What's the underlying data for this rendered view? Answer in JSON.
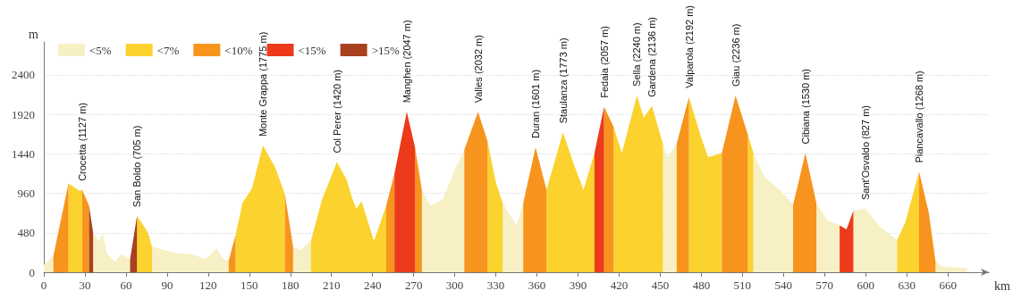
{
  "chart_data": {
    "type": "area",
    "xlabel": "km",
    "ylabel": "m",
    "x": [
      0,
      7,
      18,
      26,
      28,
      33,
      36,
      40,
      43,
      46,
      52,
      57,
      63,
      68,
      72,
      76,
      79,
      97,
      108,
      118,
      126,
      131,
      135,
      140,
      145,
      152,
      160,
      169,
      176,
      182,
      187,
      195,
      203,
      214,
      221,
      225,
      228,
      232,
      241,
      244,
      250,
      256,
      265,
      271,
      276,
      282,
      291,
      300,
      307,
      317,
      324,
      330,
      335,
      345,
      350,
      359,
      367,
      379,
      387,
      394,
      402,
      409,
      416,
      422,
      433,
      438,
      444,
      452,
      455,
      462,
      471,
      480,
      485,
      495,
      505,
      514,
      518,
      526,
      538,
      547,
      556,
      564,
      572,
      581,
      586,
      591,
      600,
      610,
      623,
      629,
      639,
      646,
      651,
      656,
      674
    ],
    "series": [
      {
        "name": "<5%",
        "color": "#f6f0c4",
        "values": [
          90,
          200,
          null,
          null,
          null,
          null,
          480,
          380,
          470,
          230,
          130,
          220,
          160,
          null,
          null,
          null,
          310,
          230,
          220,
          160,
          290,
          160,
          140,
          null,
          null,
          null,
          null,
          null,
          null,
          310,
          270,
          380,
          null,
          null,
          null,
          null,
          null,
          null,
          null,
          null,
          null,
          null,
          null,
          null,
          1000,
          810,
          880,
          1240,
          1490,
          null,
          null,
          null,
          840,
          570,
          840,
          null,
          null,
          null,
          null,
          null,
          null,
          null,
          null,
          null,
          null,
          null,
          null,
          1560,
          1400,
          1560,
          null,
          null,
          null,
          null,
          null,
          null,
          1450,
          1160,
          990,
          820,
          null,
          840,
          630,
          570,
          null,
          750,
          770,
          560,
          390,
          null,
          null,
          null,
          130,
          70,
          50
        ]
      },
      {
        "name": "<7%",
        "color": "#fbd22e",
        "values": [
          null,
          null,
          1080,
          990,
          1000,
          null,
          null,
          null,
          null,
          null,
          null,
          null,
          null,
          680,
          590,
          480,
          310,
          null,
          null,
          null,
          null,
          null,
          null,
          450,
          840,
          1020,
          1540,
          1270,
          950,
          null,
          null,
          380,
          880,
          1340,
          1130,
          910,
          770,
          860,
          380,
          520,
          810,
          null,
          null,
          null,
          null,
          null,
          null,
          null,
          null,
          null,
          1590,
          1090,
          840,
          null,
          null,
          null,
          1000,
          1700,
          1310,
          1000,
          1450,
          null,
          1770,
          1450,
          2150,
          1880,
          2020,
          1560,
          null,
          null,
          2130,
          1630,
          1400,
          1450,
          null,
          1670,
          1450,
          null,
          null,
          null,
          null,
          null,
          null,
          null,
          null,
          null,
          null,
          null,
          390,
          610,
          1220,
          null,
          null,
          null,
          null
        ]
      },
      {
        "name": "<10%",
        "color": "#f7941d",
        "values": [
          null,
          200,
          1080,
          null,
          1000,
          810,
          null,
          null,
          null,
          null,
          null,
          null,
          null,
          null,
          null,
          null,
          null,
          null,
          null,
          null,
          null,
          null,
          140,
          450,
          null,
          null,
          null,
          null,
          950,
          310,
          null,
          null,
          null,
          null,
          null,
          null,
          null,
          null,
          null,
          null,
          810,
          1200,
          null,
          1520,
          1000,
          null,
          null,
          null,
          1490,
          1950,
          1590,
          null,
          null,
          null,
          840,
          1520,
          1000,
          null,
          null,
          null,
          null,
          2010,
          1770,
          null,
          null,
          null,
          null,
          null,
          null,
          1560,
          2130,
          null,
          null,
          1450,
          2150,
          1670,
          null,
          null,
          null,
          820,
          1450,
          840,
          null,
          null,
          null,
          null,
          null,
          null,
          null,
          null,
          1220,
          730,
          130,
          null,
          null
        ]
      },
      {
        "name": "<15%",
        "color": "#ec3a1a",
        "values": [
          null,
          null,
          null,
          null,
          null,
          null,
          null,
          null,
          null,
          null,
          null,
          null,
          null,
          null,
          null,
          null,
          null,
          null,
          null,
          null,
          null,
          null,
          null,
          null,
          null,
          null,
          null,
          null,
          null,
          null,
          null,
          null,
          null,
          null,
          null,
          null,
          null,
          null,
          null,
          null,
          null,
          1200,
          1950,
          1520,
          null,
          null,
          null,
          null,
          null,
          null,
          null,
          null,
          null,
          null,
          null,
          null,
          null,
          null,
          null,
          null,
          1450,
          2010,
          null,
          null,
          null,
          null,
          null,
          null,
          null,
          null,
          null,
          null,
          null,
          null,
          null,
          null,
          null,
          null,
          null,
          null,
          null,
          null,
          null,
          570,
          520,
          750,
          null,
          null,
          null,
          null,
          null,
          null,
          null,
          null,
          null
        ]
      },
      {
        "name": ">15%",
        "color": "#a9411f",
        "values": [
          null,
          null,
          null,
          null,
          null,
          810,
          480,
          null,
          null,
          null,
          null,
          null,
          160,
          680,
          null,
          null,
          null,
          null,
          null,
          null,
          null,
          null,
          null,
          null,
          null,
          null,
          null,
          null,
          null,
          null,
          null,
          null,
          null,
          null,
          null,
          null,
          null,
          null,
          null,
          null,
          null,
          null,
          null,
          null,
          null,
          null,
          null,
          null,
          null,
          null,
          null,
          null,
          null,
          null,
          null,
          null,
          null,
          null,
          null,
          null,
          null,
          null,
          null,
          null,
          null,
          null,
          null,
          null,
          null,
          null,
          null,
          null,
          null,
          null,
          null,
          null,
          null,
          null,
          null,
          null,
          null,
          null,
          null,
          null,
          null,
          null,
          null,
          null,
          null,
          null,
          null,
          null,
          null,
          null,
          null
        ]
      }
    ],
    "xlim": [
      0,
      690
    ],
    "xticks": [
      0,
      30,
      60,
      90,
      120,
      150,
      180,
      210,
      240,
      270,
      300,
      330,
      360,
      390,
      420,
      450,
      480,
      510,
      540,
      570,
      600,
      630,
      660
    ],
    "ylim": [
      0,
      2800
    ],
    "yticks": [
      0,
      480,
      960,
      1440,
      1920,
      2400
    ],
    "grid": "y",
    "legend": "top left",
    "annotations": [
      {
        "text": "Crocetta (1127 m)",
        "x": 28,
        "y": 1000
      },
      {
        "text": "San Boldo (705 m)",
        "x": 68,
        "y": 680
      },
      {
        "text": "Monte Grappa (1775 m)",
        "x": 160,
        "y": 1540
      },
      {
        "text": "Col Perer (1420 m)",
        "x": 214,
        "y": 1340
      },
      {
        "text": "Manghen (2047 m)",
        "x": 265,
        "y": 1950
      },
      {
        "text": "Valles (2032 m)",
        "x": 317,
        "y": 1950
      },
      {
        "text": "Duran (1601 m)",
        "x": 359,
        "y": 1520
      },
      {
        "text": "Staulanza (1773 m)",
        "x": 379,
        "y": 1700
      },
      {
        "text": "Fedaia (2057 m)",
        "x": 409,
        "y": 2010
      },
      {
        "text": "Sella (2240 m)",
        "x": 433,
        "y": 2150
      },
      {
        "text": "Gardena (2136 m)",
        "x": 444,
        "y": 2020
      },
      {
        "text": "Valparola (2192 m)",
        "x": 471,
        "y": 2130
      },
      {
        "text": "Giau (2236 m)",
        "x": 505,
        "y": 2150
      },
      {
        "text": "Cibiana (1530 m)",
        "x": 556,
        "y": 1450
      },
      {
        "text": "Sant'Osvaldo (827 m)",
        "x": 600,
        "y": 770
      },
      {
        "text": "Piancavallo (1268 m)",
        "x": 639,
        "y": 1220
      }
    ]
  }
}
